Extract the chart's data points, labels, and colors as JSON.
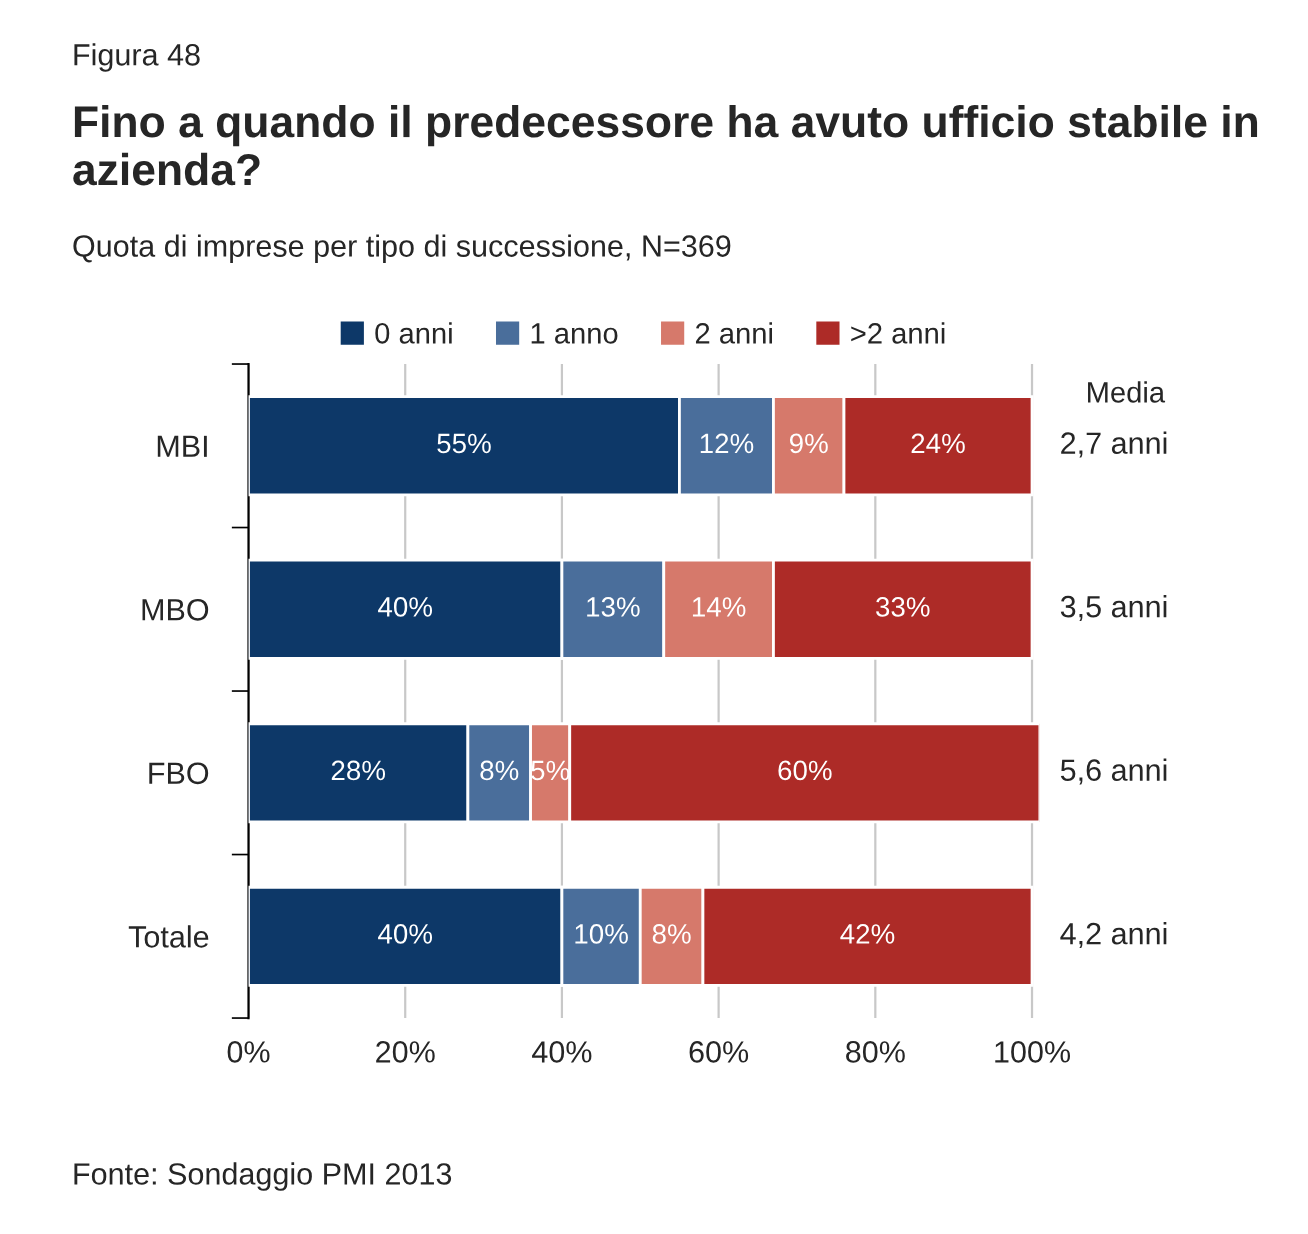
{
  "chart_data": {
    "type": "bar",
    "orientation": "horizontal",
    "stacked": true,
    "title": "Fino a quando il predecessore ha avuto ufficio stabile in azienda?",
    "subtitle": "Quota di imprese per tipo di successione, N=369",
    "categories": [
      "MBI",
      "MBO",
      "FBO",
      "Totale"
    ],
    "series": [
      {
        "name": "0 anni",
        "color": "#0d3868",
        "values": [
          55,
          40,
          28,
          40
        ],
        "value_labels": [
          "55%",
          "40%",
          "28%",
          "40%"
        ]
      },
      {
        "name": "1 anno",
        "color": "#4a6e9b",
        "values": [
          12,
          13,
          8,
          10
        ],
        "value_labels": [
          "12%",
          "13%",
          "8%",
          "10%"
        ]
      },
      {
        "name": "2 anni",
        "color": "#d6796b",
        "values": [
          9,
          14,
          5,
          8
        ],
        "value_labels": [
          "9%",
          "14%",
          "5%",
          "8%"
        ]
      },
      {
        "name": ">2 anni",
        "color": "#ad2b27",
        "values": [
          24,
          33,
          60,
          42
        ],
        "value_labels": [
          "24%",
          "33%",
          "60%",
          "42%"
        ]
      }
    ],
    "xlim": [
      0,
      101
    ],
    "xticks": [
      {
        "value": 0,
        "label": "0%"
      },
      {
        "value": 20,
        "label": "20%"
      },
      {
        "value": 40,
        "label": "40%"
      },
      {
        "value": 60,
        "label": "60%"
      },
      {
        "value": 80,
        "label": "80%"
      },
      {
        "value": 100,
        "label": "100%"
      }
    ],
    "grid": "x",
    "legend": "top",
    "annotations": [
      "Figura 48",
      "Media",
      "2,7 anni",
      "3,5 anni",
      "5,6 anni",
      "4,2 anni",
      "Fonte: Sondaggio PMI 2013"
    ]
  }
}
